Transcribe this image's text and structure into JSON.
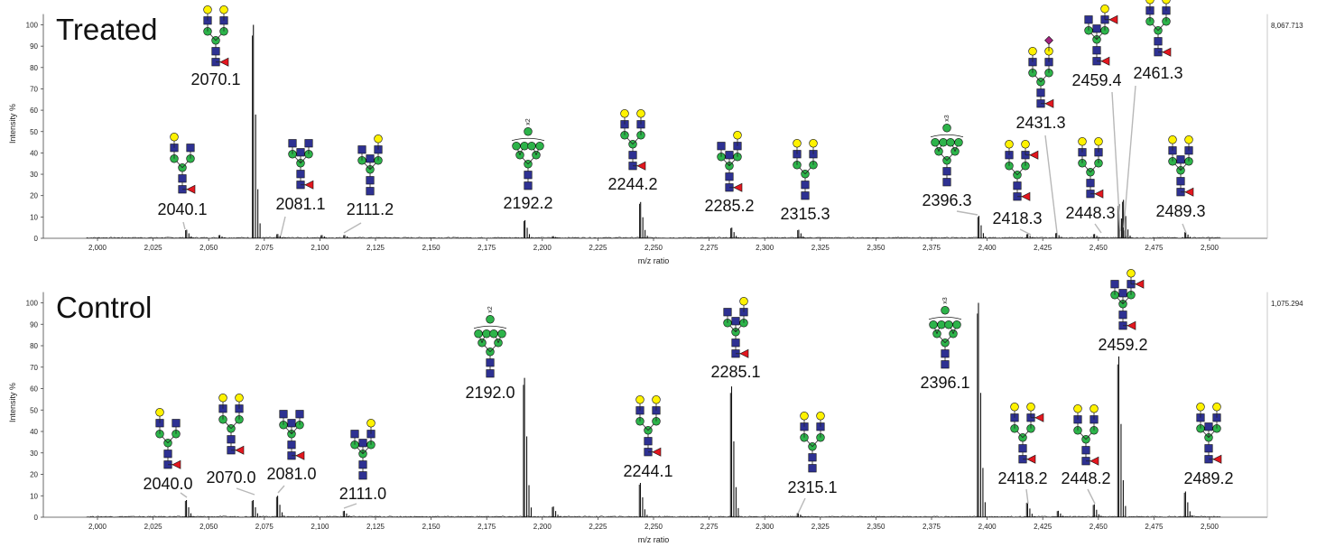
{
  "colors": {
    "spectrum": "#111111",
    "leader": "#b8b8b8",
    "hexnac": "#2e3192",
    "hexose": "#2db34a",
    "galactose": "#fff200",
    "fucose": "#e3171f",
    "sialic": "#a2237f"
  },
  "chart_data": [
    {
      "type": "line",
      "title": "Treated",
      "xlabel": "m/z ratio",
      "ylabel": "Intensity %",
      "xlim": [
        1995,
        2505
      ],
      "ylim": [
        0,
        105
      ],
      "xticks": [
        "2,000",
        "2,025",
        "2,050",
        "2,075",
        "2,100",
        "2,125",
        "2,150",
        "2,175",
        "2,200",
        "2,225",
        "2,250",
        "2,275",
        "2,300",
        "2,325",
        "2,350",
        "2,375",
        "2,400",
        "2,425",
        "2,450",
        "2,475",
        "2,500"
      ],
      "yticks": [
        "0",
        "10",
        "20",
        "30",
        "40",
        "50",
        "60",
        "70",
        "80",
        "90",
        "100"
      ],
      "max_intensity_label": "8,067.713",
      "grid": false,
      "peaks": [
        {
          "mz": 2040.1,
          "intensity": 4
        },
        {
          "mz": 2055.0,
          "intensity": 1.5
        },
        {
          "mz": 2070.1,
          "intensity": 100
        },
        {
          "mz": 2081.1,
          "intensity": 2
        },
        {
          "mz": 2101.0,
          "intensity": 1.5
        },
        {
          "mz": 2111.2,
          "intensity": 1.5
        },
        {
          "mz": 2192.2,
          "intensity": 8.5
        },
        {
          "mz": 2205.0,
          "intensity": 1
        },
        {
          "mz": 2244.2,
          "intensity": 17
        },
        {
          "mz": 2285.2,
          "intensity": 5
        },
        {
          "mz": 2315.3,
          "intensity": 4
        },
        {
          "mz": 2396.3,
          "intensity": 10.5
        },
        {
          "mz": 2418.3,
          "intensity": 2
        },
        {
          "mz": 2431.3,
          "intensity": 2.5
        },
        {
          "mz": 2448.3,
          "intensity": 2
        },
        {
          "mz": 2459.4,
          "intensity": 16
        },
        {
          "mz": 2461.3,
          "intensity": 18
        },
        {
          "mz": 2489.3,
          "intensity": 3
        }
      ],
      "annotations": [
        {
          "label": "2040.1",
          "mz": 2040.1,
          "glycan": "A",
          "mult": ""
        },
        {
          "label": "2070.1",
          "mz": 2070.1,
          "glycan": "B",
          "mult": ""
        },
        {
          "label": "2081.1",
          "mz": 2081.1,
          "glycan": "C",
          "mult": ""
        },
        {
          "label": "2111.2",
          "mz": 2111.2,
          "glycan": "D",
          "mult": ""
        },
        {
          "label": "2192.2",
          "mz": 2192.2,
          "glycan": "E",
          "mult": "x2"
        },
        {
          "label": "2244.2",
          "mz": 2244.2,
          "glycan": "F",
          "mult": ""
        },
        {
          "label": "2285.2",
          "mz": 2285.2,
          "glycan": "G",
          "mult": ""
        },
        {
          "label": "2315.3",
          "mz": 2315.3,
          "glycan": "H",
          "mult": ""
        },
        {
          "label": "2396.3",
          "mz": 2396.3,
          "glycan": "E",
          "mult": "x3"
        },
        {
          "label": "2418.3",
          "mz": 2418.3,
          "glycan": "I",
          "mult": ""
        },
        {
          "label": "2431.3",
          "mz": 2431.3,
          "glycan": "J",
          "mult": ""
        },
        {
          "label": "2448.3",
          "mz": 2448.3,
          "glycan": "K",
          "mult": ""
        },
        {
          "label": "2459.4",
          "mz": 2459.4,
          "glycan": "L",
          "mult": ""
        },
        {
          "label": "2461.3",
          "mz": 2461.3,
          "glycan": "M",
          "mult": ""
        },
        {
          "label": "2489.3",
          "mz": 2489.3,
          "glycan": "N",
          "mult": ""
        }
      ]
    },
    {
      "type": "line",
      "title": "Control",
      "xlabel": "m/z ratio",
      "ylabel": "Intensity %",
      "xlim": [
        1995,
        2505
      ],
      "ylim": [
        0,
        105
      ],
      "xticks": [
        "2,000",
        "2,025",
        "2,050",
        "2,075",
        "2,100",
        "2,125",
        "2,150",
        "2,175",
        "2,200",
        "2,225",
        "2,250",
        "2,275",
        "2,300",
        "2,325",
        "2,350",
        "2,375",
        "2,400",
        "2,425",
        "2,450",
        "2,475",
        "2,500"
      ],
      "yticks": [
        "0",
        "10",
        "20",
        "30",
        "40",
        "50",
        "60",
        "70",
        "80",
        "90",
        "100"
      ],
      "max_intensity_label": "1,075.294",
      "grid": false,
      "peaks": [
        {
          "mz": 2040.0,
          "intensity": 8
        },
        {
          "mz": 2070.0,
          "intensity": 8
        },
        {
          "mz": 2081.0,
          "intensity": 10
        },
        {
          "mz": 2111.0,
          "intensity": 3
        },
        {
          "mz": 2192.0,
          "intensity": 65
        },
        {
          "mz": 2205.0,
          "intensity": 5
        },
        {
          "mz": 2244.1,
          "intensity": 16
        },
        {
          "mz": 2285.1,
          "intensity": 61
        },
        {
          "mz": 2315.1,
          "intensity": 2
        },
        {
          "mz": 2396.1,
          "intensity": 100
        },
        {
          "mz": 2418.2,
          "intensity": 7
        },
        {
          "mz": 2432.0,
          "intensity": 3
        },
        {
          "mz": 2448.2,
          "intensity": 6
        },
        {
          "mz": 2459.2,
          "intensity": 75
        },
        {
          "mz": 2489.2,
          "intensity": 12
        }
      ],
      "annotations": [
        {
          "label": "2040.0",
          "mz": 2040.0,
          "glycan": "A",
          "mult": ""
        },
        {
          "label": "2070.0",
          "mz": 2070.0,
          "glycan": "B",
          "mult": ""
        },
        {
          "label": "2081.0",
          "mz": 2081.0,
          "glycan": "C",
          "mult": ""
        },
        {
          "label": "2111.0",
          "mz": 2111.0,
          "glycan": "D",
          "mult": ""
        },
        {
          "label": "2192.0",
          "mz": 2192.0,
          "glycan": "E",
          "mult": "x2"
        },
        {
          "label": "2244.1",
          "mz": 2244.1,
          "glycan": "F",
          "mult": ""
        },
        {
          "label": "2285.1",
          "mz": 2285.1,
          "glycan": "G",
          "mult": ""
        },
        {
          "label": "2315.1",
          "mz": 2315.1,
          "glycan": "H",
          "mult": ""
        },
        {
          "label": "2396.1",
          "mz": 2396.1,
          "glycan": "E",
          "mult": "x3"
        },
        {
          "label": "2418.2",
          "mz": 2418.2,
          "glycan": "I",
          "mult": ""
        },
        {
          "label": "2448.2",
          "mz": 2448.2,
          "glycan": "K",
          "mult": ""
        },
        {
          "label": "2459.2",
          "mz": 2459.2,
          "glycan": "L",
          "mult": ""
        },
        {
          "label": "2489.2",
          "mz": 2489.2,
          "glycan": "N",
          "mult": ""
        }
      ]
    }
  ]
}
